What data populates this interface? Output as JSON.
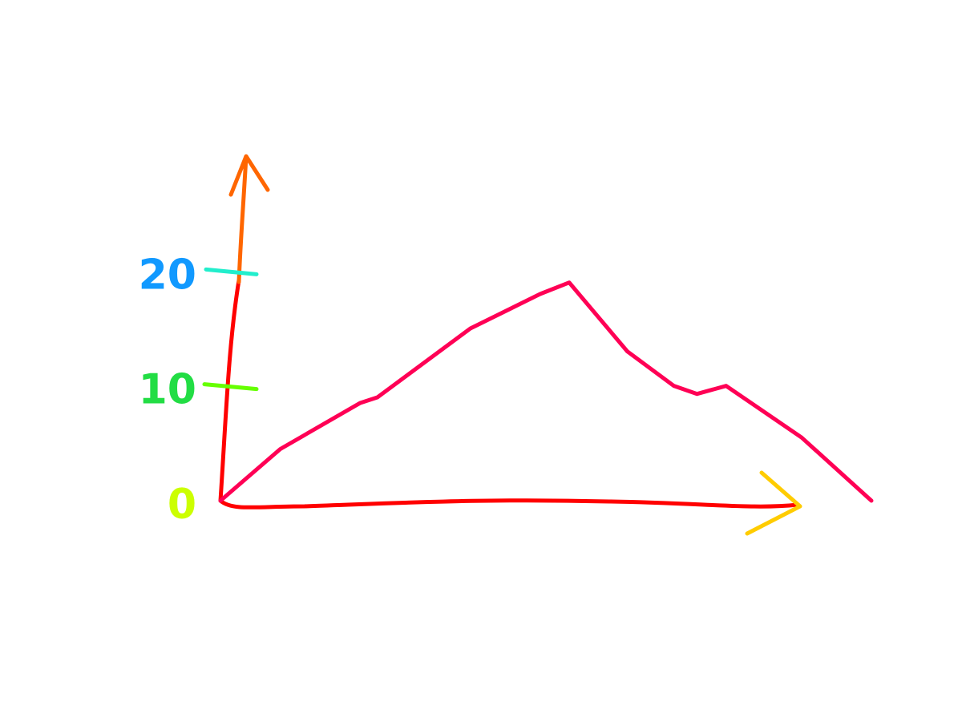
{
  "chart_data": {
    "type": "line",
    "x": [
      0,
      10.3,
      24,
      27,
      43,
      55,
      60,
      70,
      78,
      82,
      87,
      100,
      112
    ],
    "series": [
      {
        "color": "#ff0055",
        "values": [
          0,
          4.5,
          8.5,
          9,
          15,
          18,
          19,
          13,
          10,
          9.3,
          10,
          5.5,
          0
        ]
      }
    ],
    "xlim": [
      0,
      100
    ],
    "ylim": [
      0,
      30
    ],
    "yticks": [
      0,
      10,
      20
    ]
  }
}
